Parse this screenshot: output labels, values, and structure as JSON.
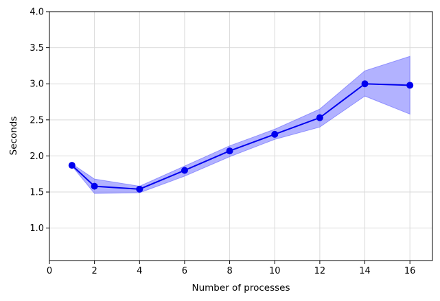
{
  "chart_data": {
    "type": "line",
    "title": "",
    "xlabel": "Number of processes",
    "ylabel": "Seconds",
    "xlim": [
      0,
      17
    ],
    "ylim": [
      0.55,
      4.0
    ],
    "xticks": [
      0,
      2,
      4,
      6,
      8,
      10,
      12,
      14,
      16
    ],
    "yticks": [
      1.0,
      1.5,
      2.0,
      2.5,
      3.0,
      3.5,
      4.0
    ],
    "xtick_labels": [
      "0",
      "2",
      "4",
      "6",
      "8",
      "10",
      "12",
      "14",
      "16"
    ],
    "ytick_labels": [
      "1.0",
      "1.5",
      "2.0",
      "2.5",
      "3.0",
      "3.5",
      "4.0"
    ],
    "grid": true,
    "series": [
      {
        "x": [
          1,
          2,
          4,
          6,
          8,
          10,
          12,
          14,
          16
        ],
        "y": [
          1.87,
          1.58,
          1.54,
          1.8,
          2.07,
          2.3,
          2.53,
          3.0,
          2.98
        ],
        "band_lower": [
          1.86,
          1.48,
          1.49,
          1.72,
          1.99,
          2.23,
          2.4,
          2.83,
          2.58
        ],
        "band_upper": [
          1.89,
          1.68,
          1.58,
          1.86,
          2.14,
          2.37,
          2.65,
          3.18,
          3.38
        ],
        "color": "#0000ee",
        "band_color": "#6666ff"
      }
    ]
  }
}
